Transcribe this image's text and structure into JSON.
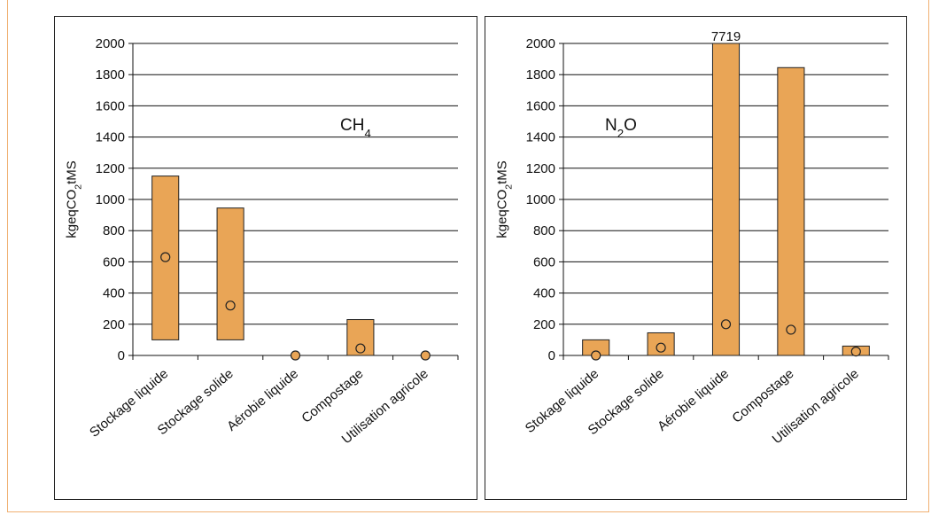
{
  "colors": {
    "bar_fill": "#E9A556",
    "bar_stroke": "#222222",
    "marker_fill": "#E9A556",
    "grid": "#111111",
    "frame": "#F0B072"
  },
  "chart_data": [
    {
      "type": "bar",
      "subtype": "floating-range-with-point",
      "ylabel": "kg eqCO2/t MS",
      "annotation": "CH4",
      "ylim": [
        0,
        2000
      ],
      "yticks": [
        "0",
        "200",
        "400",
        "600",
        "800",
        "1000",
        "1200",
        "1400",
        "1600",
        "1800",
        "2000"
      ],
      "grid": true,
      "categories": [
        "Stockage liquide",
        "Stockage solide",
        "Aérobie liquide",
        "Compostage",
        "Utilisation agricole"
      ],
      "range_low": [
        100,
        100,
        0,
        0,
        0
      ],
      "range_high": [
        1150,
        945,
        0,
        230,
        0
      ],
      "point": [
        630,
        320,
        0,
        45,
        0
      ],
      "overflow_labels": []
    },
    {
      "type": "bar",
      "subtype": "floating-range-with-point",
      "ylabel": "kg eqCO2/t MS",
      "annotation": "N2O",
      "ylim": [
        0,
        2000
      ],
      "yticks": [
        "0",
        "200",
        "400",
        "600",
        "800",
        "1000",
        "1200",
        "1400",
        "1600",
        "1800",
        "2000"
      ],
      "grid": true,
      "categories": [
        "Stokage liquide",
        "Stockage solide",
        "Aérobie liquide",
        "Compostage",
        "Utilisation agricole"
      ],
      "range_low": [
        0,
        0,
        0,
        0,
        0
      ],
      "range_high": [
        100,
        145,
        7719,
        1845,
        60
      ],
      "point": [
        0,
        50,
        200,
        165,
        25
      ],
      "overflow_labels": [
        {
          "index": 2,
          "text": "7719"
        }
      ]
    }
  ]
}
